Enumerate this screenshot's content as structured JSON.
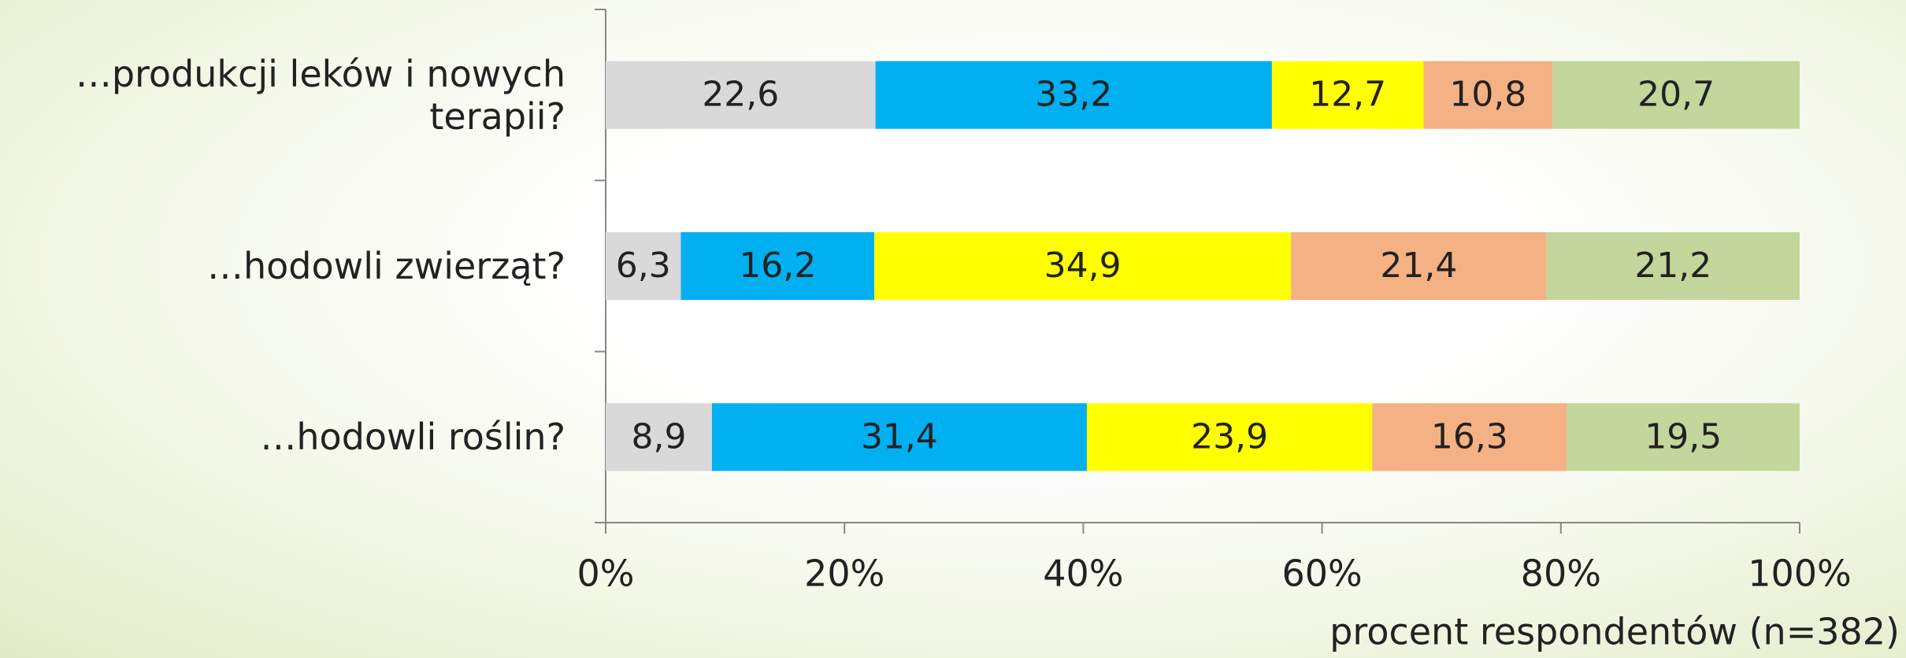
{
  "chart_data": {
    "type": "stacked-bar-horizontal",
    "categories": [
      "…produkcji leków i nowych terapii?",
      "…hodowli zwierząt?",
      "…hodowli roślin?"
    ],
    "series": [
      {
        "color": "#d9d9d9",
        "values": [
          22.6,
          6.3,
          8.9
        ],
        "value_labels": [
          "22,6",
          "6,3",
          "8,9"
        ]
      },
      {
        "color": "#00b0f0",
        "values": [
          33.2,
          16.2,
          31.4
        ],
        "value_labels": [
          "33,2",
          "16,2",
          "31,4"
        ]
      },
      {
        "color": "#ffff00",
        "values": [
          12.7,
          34.9,
          23.9
        ],
        "value_labels": [
          "12,7",
          "34,9",
          "23,9"
        ]
      },
      {
        "color": "#f4b183",
        "values": [
          10.8,
          21.4,
          16.3
        ],
        "value_labels": [
          "10,8",
          "21,4",
          "16,3"
        ]
      },
      {
        "color": "#c3d69b",
        "values": [
          20.7,
          21.2,
          19.5
        ],
        "value_labels": [
          "20,7",
          "21,2",
          "19,5"
        ]
      }
    ],
    "xlim": [
      0,
      100
    ],
    "xticks": [
      {
        "value": 0,
        "label": "0%"
      },
      {
        "value": 20,
        "label": "20%"
      },
      {
        "value": 40,
        "label": "40%"
      },
      {
        "value": 60,
        "label": "60%"
      },
      {
        "value": 80,
        "label": "80%"
      },
      {
        "value": 100,
        "label": "100%"
      }
    ],
    "xlabel": "procent respondentów (n=382)"
  }
}
